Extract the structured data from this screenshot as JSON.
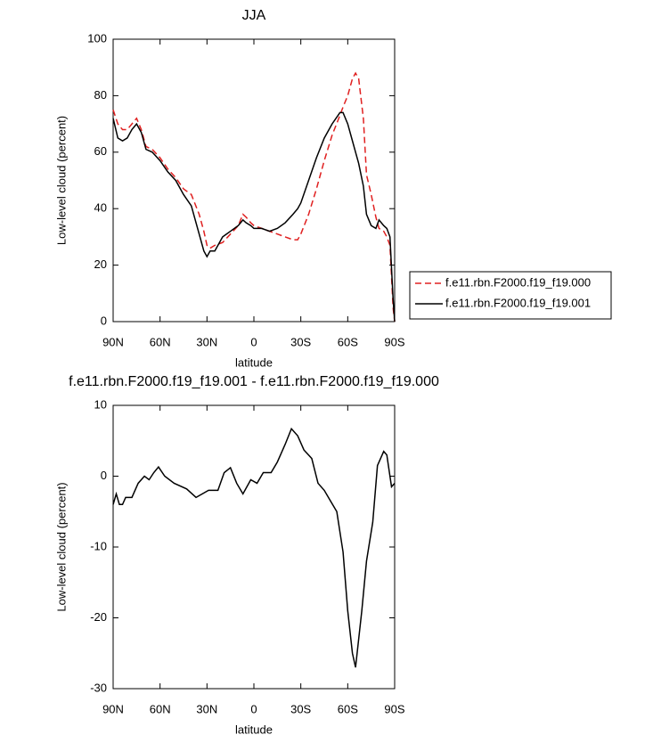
{
  "chart_data": [
    {
      "type": "line",
      "title": "JJA",
      "ylabel": "Low-level cloud (percent)",
      "xlabel": "latitude",
      "x": [
        90,
        87,
        84,
        81,
        78,
        75,
        72,
        69,
        65,
        60,
        55,
        50,
        45,
        40,
        35,
        32,
        30,
        28,
        25,
        20,
        15,
        10,
        7,
        5,
        2,
        0,
        -5,
        -10,
        -15,
        -20,
        -25,
        -28,
        -30,
        -35,
        -40,
        -45,
        -50,
        -55,
        -57,
        -60,
        -63,
        -65,
        -67,
        -70,
        -72,
        -75,
        -78,
        -80,
        -83,
        -85,
        -87,
        -89,
        -90
      ],
      "series": [
        {
          "name": "f.e11.rbn.F2000.f19_f19.000",
          "color": "#e02020",
          "line_style": "dashed",
          "values": [
            75,
            70,
            68,
            68,
            70,
            72,
            68,
            62,
            61,
            58,
            54,
            51,
            47,
            45,
            38,
            32,
            27,
            26,
            27,
            28,
            31,
            34,
            38,
            37,
            35,
            34,
            33,
            32,
            31,
            30,
            29,
            29,
            31,
            38,
            47,
            57,
            66,
            73,
            76,
            80,
            86,
            88,
            86,
            72,
            52,
            45,
            37,
            33,
            32,
            30,
            27,
            5,
            0
          ]
        },
        {
          "name": "f.e11.rbn.F2000.f19_f19.001",
          "color": "#000000",
          "line_style": "solid",
          "values": [
            72,
            65,
            64,
            65,
            68,
            70,
            67,
            61,
            60,
            57,
            53,
            50,
            45,
            41,
            31,
            25,
            23,
            25,
            25,
            30,
            32,
            34,
            36,
            35,
            34,
            33,
            33,
            32,
            33,
            35,
            38,
            40,
            42,
            50,
            58,
            65,
            70,
            74,
            74,
            70,
            64,
            60,
            56,
            48,
            38,
            34,
            33,
            36,
            34,
            33,
            30,
            8,
            0
          ]
        }
      ],
      "xlim": [
        90,
        -90
      ],
      "xticks": [
        {
          "value": 90,
          "label": "90N"
        },
        {
          "value": 60,
          "label": "60N"
        },
        {
          "value": 30,
          "label": "30N"
        },
        0,
        {
          "value": -30,
          "label": "30S"
        },
        {
          "value": -60,
          "label": "60S"
        },
        {
          "value": -90,
          "label": "90S"
        }
      ],
      "ylim": [
        0,
        100
      ],
      "yticks": [
        0,
        20,
        40,
        60,
        80,
        100
      ],
      "legend": "right"
    },
    {
      "type": "line",
      "title": "f.e11.rbn.F2000.f19_f19.001 - f.e11.rbn.F2000.f19_f19.000",
      "ylabel": "Low-level cloud (percent)",
      "xlabel": "latitude",
      "x": [
        90,
        88,
        86,
        84,
        82,
        78,
        74,
        70,
        67,
        64,
        61,
        57,
        51,
        43,
        37,
        29,
        23,
        19,
        15,
        11,
        7,
        2,
        -2,
        -6,
        -11,
        -15,
        -20,
        -24,
        -28,
        -32,
        -37,
        -41,
        -45,
        -49,
        -53,
        -57,
        -60,
        -63,
        -65,
        -69,
        -72,
        -76,
        -79,
        -83,
        -85,
        -88,
        -90
      ],
      "color": "#000000",
      "values": [
        -4,
        -2.5,
        -4,
        -4,
        -3,
        -3,
        -1,
        0,
        -0.5,
        0.5,
        1.3,
        0,
        -1,
        -1.8,
        -3,
        -2,
        -2,
        0.5,
        1.2,
        -1,
        -2.5,
        -0.5,
        -1,
        0.5,
        0.5,
        2,
        4.5,
        6.7,
        5.7,
        3.7,
        2.5,
        -1,
        -2,
        -3.5,
        -5,
        -10.7,
        -19,
        -25,
        -27,
        -19,
        -12,
        -6.5,
        1.5,
        3.5,
        3,
        -1.5,
        -1
      ],
      "xlim": [
        90,
        -90
      ],
      "xticks": [
        {
          "value": 90,
          "label": "90N"
        },
        {
          "value": 60,
          "label": "60N"
        },
        {
          "value": 30,
          "label": "30N"
        },
        0,
        {
          "value": -30,
          "label": "30S"
        },
        {
          "value": -60,
          "label": "60S"
        },
        {
          "value": -90,
          "label": "90S"
        }
      ],
      "ylim": [
        -30,
        10
      ],
      "yticks": [
        -30,
        -20,
        -10,
        0,
        10
      ]
    }
  ]
}
